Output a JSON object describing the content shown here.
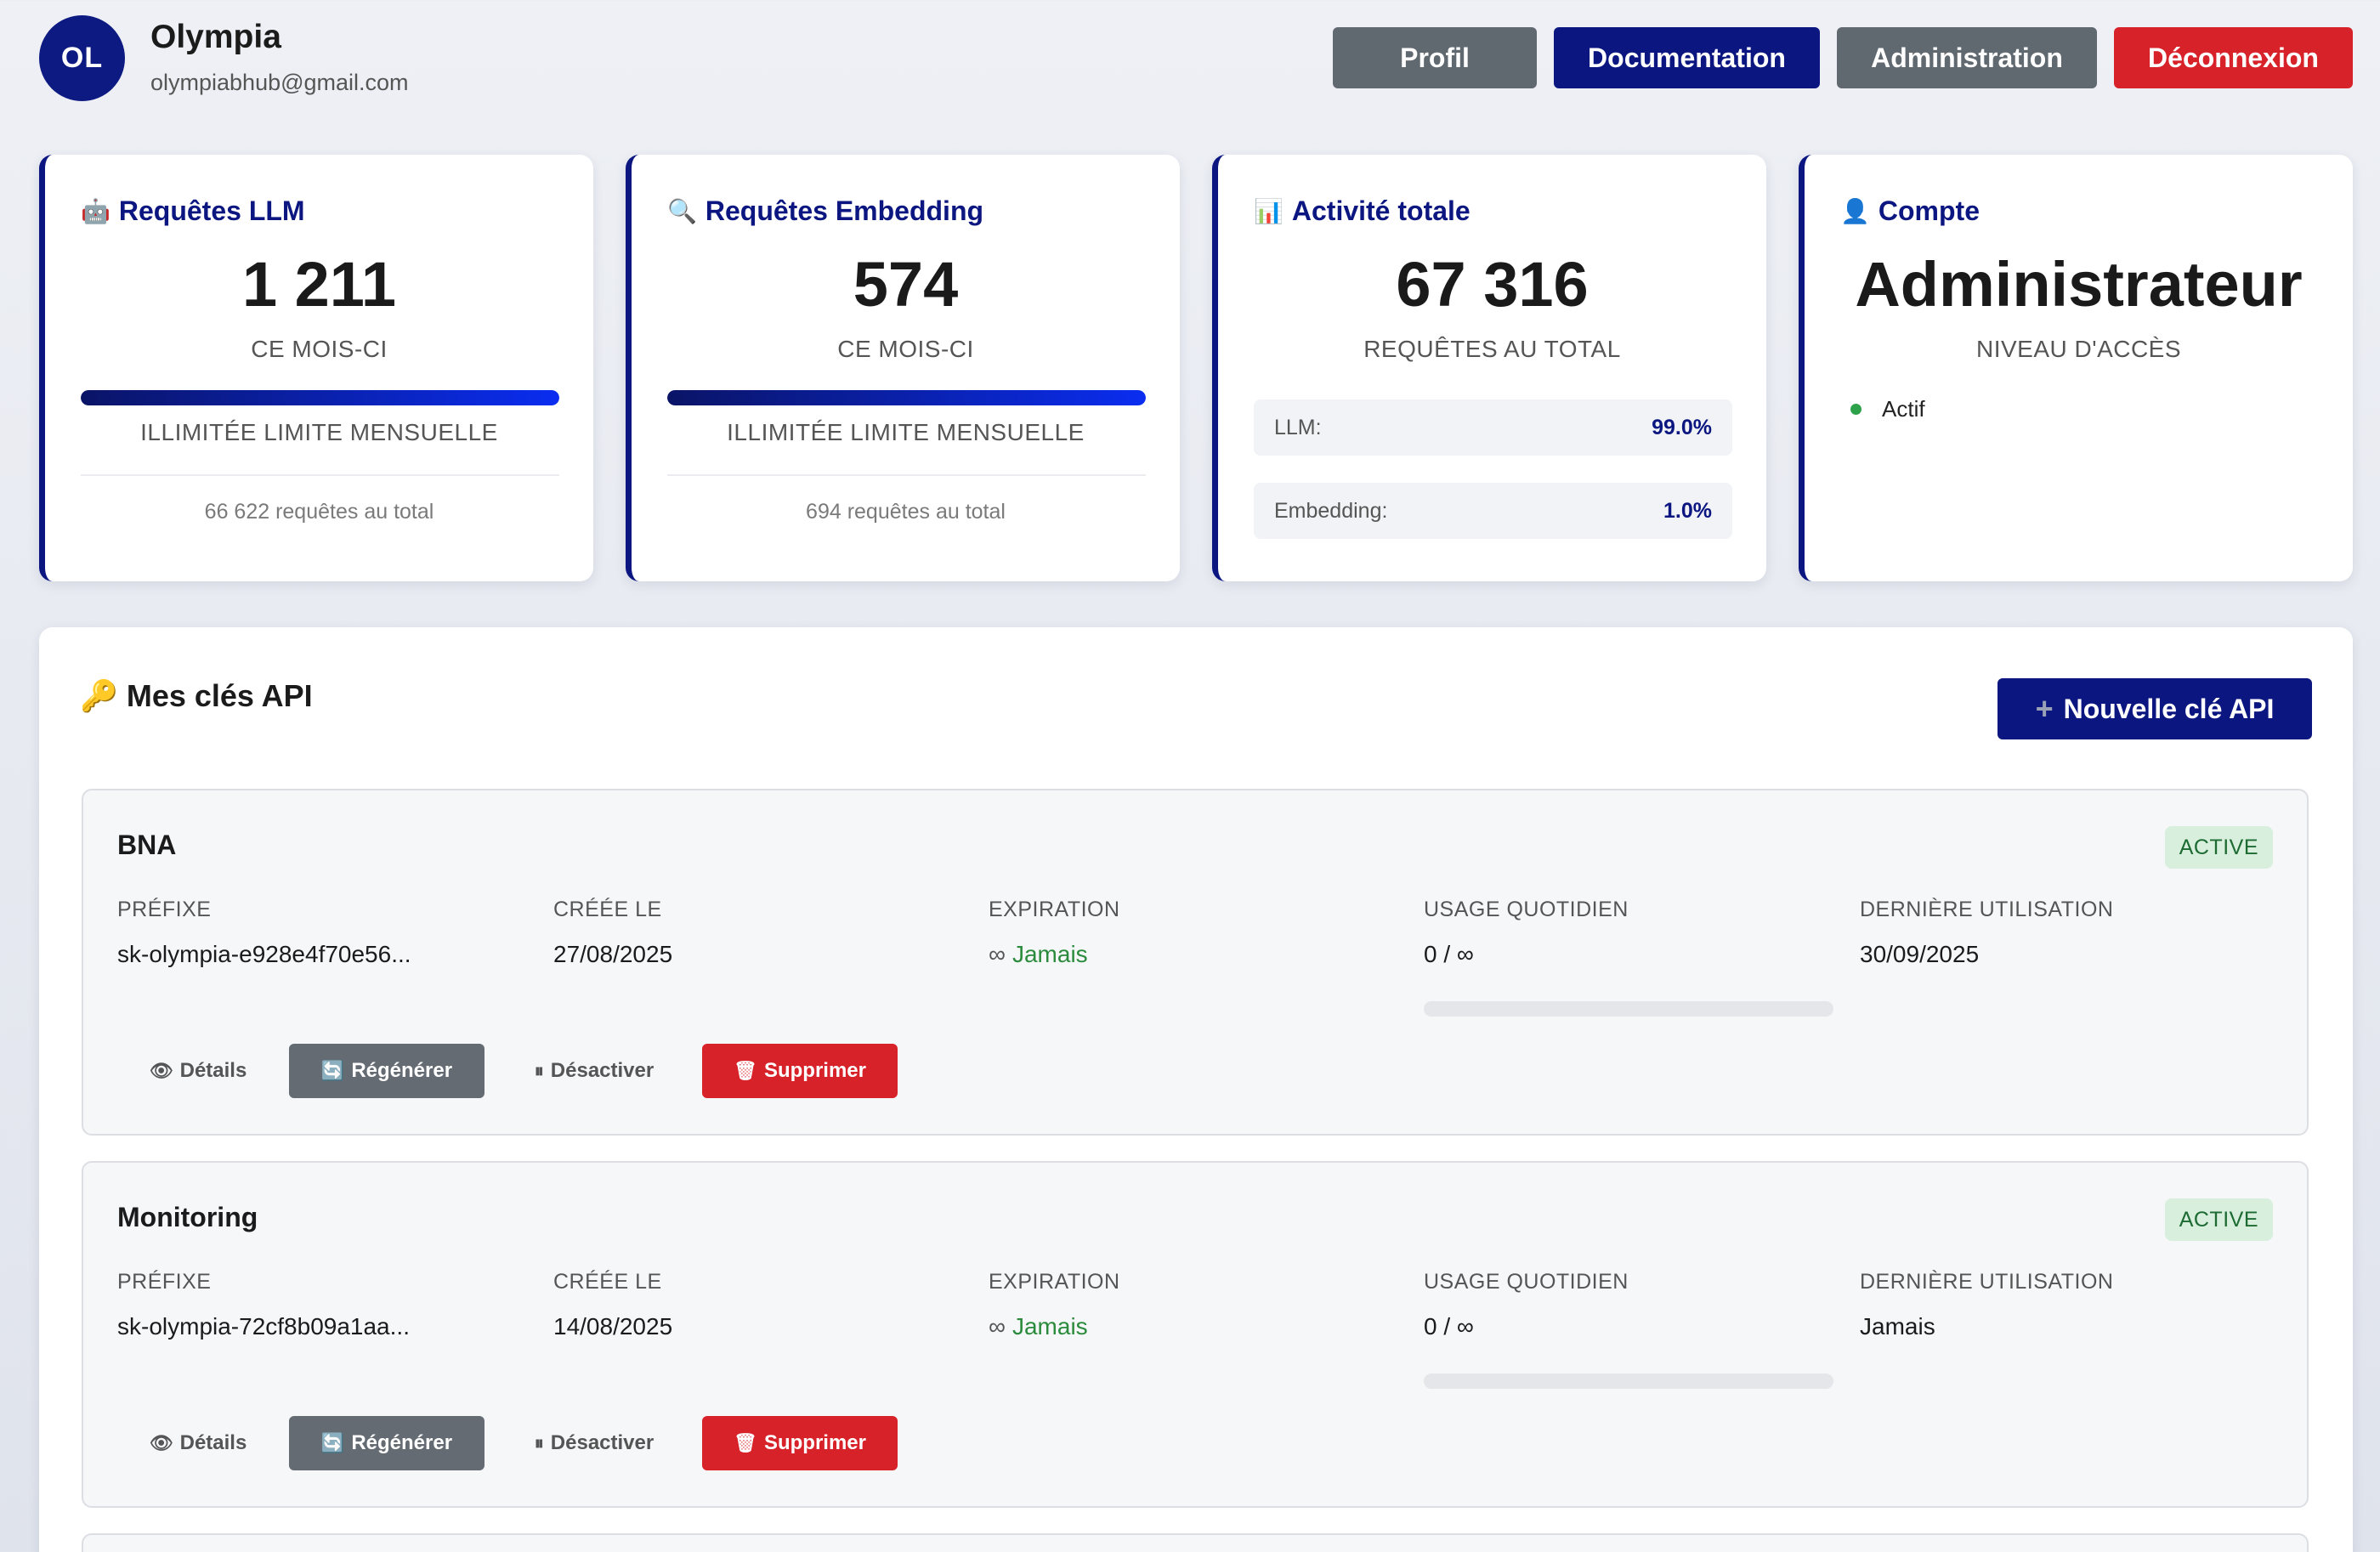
{
  "user": {
    "initials": "OL",
    "name": "Olympia",
    "email": "olympiabhub@gmail.com"
  },
  "nav": {
    "profile": "Profil",
    "docs": "Documentation",
    "admin": "Administration",
    "logout": "Déconnexion"
  },
  "colors": {
    "navy": "#0c1680",
    "gray_button": "#606870",
    "red_button": "#d8222a",
    "active_badge_bg": "#d8efdd",
    "status_green": "#2ea24a"
  },
  "stats": {
    "llm": {
      "icon": "robot-icon",
      "title": "Requêtes LLM",
      "value": "1 211",
      "period": "CE MOIS-CI",
      "progress": 1.0,
      "limit": "ILLIMITÉE LIMITE MENSUELLE",
      "total": "66 622 requêtes au total"
    },
    "embedding": {
      "icon": "magnifier-icon",
      "title": "Requêtes Embedding",
      "value": "574",
      "period": "CE MOIS-CI",
      "progress": 1.0,
      "limit": "ILLIMITÉE LIMITE MENSUELLE",
      "total": "694 requêtes au total"
    },
    "activity": {
      "icon": "chart-icon",
      "title": "Activité totale",
      "value": "67 316",
      "period": "REQUÊTES AU TOTAL",
      "llm_label": "LLM:",
      "llm_share": "99.0%",
      "embedding_label": "Embedding:",
      "embedding_share": "1.0%"
    },
    "account": {
      "icon": "user-icon",
      "title": "Compte",
      "value": "Administrateur",
      "period": "NIVEAU D'ACCÈS",
      "status": "Actif"
    }
  },
  "api_keys": {
    "icon": "key-icon",
    "title": "Mes clés API",
    "new_button": "Nouvelle clé API",
    "labels": {
      "prefix": "PRÉFIXE",
      "created": "CRÉÉE LE",
      "expiration": "EXPIRATION",
      "daily_usage": "USAGE QUOTIDIEN",
      "last_used": "DERNIÈRE UTILISATION"
    },
    "actions": {
      "details": "Détails",
      "regenerate": "Régénérer",
      "deactivate": "Désactiver",
      "delete": "Supprimer"
    },
    "keys": [
      {
        "name": "BNA",
        "status": "ACTIVE",
        "prefix": "sk-olympia-e928e4f70e56...",
        "created": "27/08/2025",
        "expiration": "Jamais",
        "daily_usage": "0 / ∞",
        "daily_usage_fraction": 0,
        "last_used": "30/09/2025"
      },
      {
        "name": "Monitoring",
        "status": "ACTIVE",
        "prefix": "sk-olympia-72cf8b09a1aa...",
        "created": "14/08/2025",
        "expiration": "Jamais",
        "daily_usage": "0 / ∞",
        "daily_usage_fraction": 0,
        "last_used": "Jamais"
      }
    ]
  }
}
